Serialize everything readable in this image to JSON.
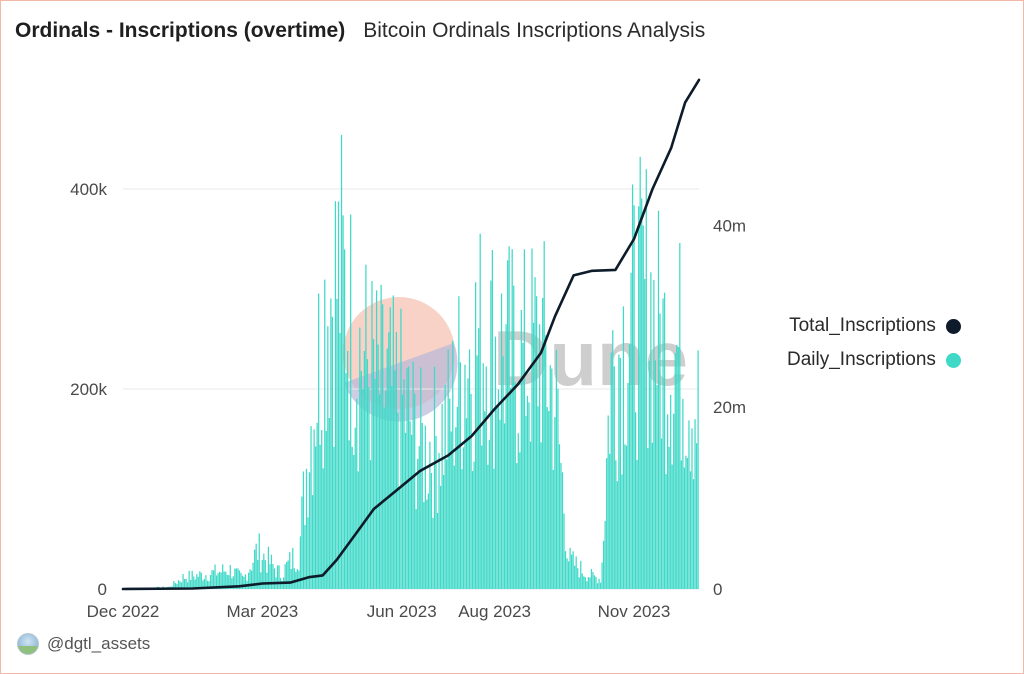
{
  "header": {
    "title": "Ordinals - Inscriptions (overtime)",
    "subtitle": "Bitcoin Ordinals Inscriptions Analysis"
  },
  "legend": {
    "items": [
      {
        "label": "Total_Inscriptions",
        "color": "#0d1b2a"
      },
      {
        "label": "Daily_Inscriptions",
        "color": "#40d9c8"
      }
    ]
  },
  "watermark": {
    "text": "Dune"
  },
  "footer": {
    "author": "@dgtl_assets",
    "avatar_icon": "user-avatar-icon"
  },
  "chart_data": {
    "type": "bar+line",
    "x_tick_labels": [
      "Dec 2022",
      "Mar 2023",
      "Jun 2023",
      "Aug 2023",
      "Nov 2023"
    ],
    "x_tick_months": [
      0,
      3,
      6,
      8,
      11
    ],
    "x_range_months": [
      0,
      12.4
    ],
    "left_axis": {
      "ticks": [
        0,
        200000,
        400000
      ],
      "tick_labels": [
        "0",
        "200k",
        "400k"
      ],
      "range": [
        0,
        500000
      ]
    },
    "right_axis": {
      "ticks": [
        0,
        20000000,
        40000000
      ],
      "tick_labels": [
        "0",
        "20m",
        "40m"
      ],
      "range": [
        0,
        55000000
      ]
    },
    "grid": "horizontal",
    "legend_position": "right",
    "series": [
      {
        "name": "Daily_Inscriptions",
        "kind": "bar",
        "axis": "left",
        "color": "#40d9c8",
        "points": [
          [
            0.0,
            0
          ],
          [
            1.0,
            2000
          ],
          [
            1.3,
            12000
          ],
          [
            1.8,
            15000
          ],
          [
            2.3,
            20000
          ],
          [
            2.6,
            10000
          ],
          [
            2.9,
            40000
          ],
          [
            3.4,
            15000
          ],
          [
            3.8,
            40000
          ],
          [
            4.0,
            150000
          ],
          [
            4.4,
            300000
          ],
          [
            4.7,
            320000
          ],
          [
            5.0,
            250000
          ],
          [
            5.5,
            210000
          ],
          [
            6.0,
            190000
          ],
          [
            6.5,
            140000
          ],
          [
            7.0,
            170000
          ],
          [
            7.4,
            240000
          ],
          [
            7.8,
            260000
          ],
          [
            8.2,
            240000
          ],
          [
            8.6,
            230000
          ],
          [
            9.0,
            250000
          ],
          [
            9.3,
            200000
          ],
          [
            9.6,
            30000
          ],
          [
            10.0,
            15000
          ],
          [
            10.3,
            10000
          ],
          [
            10.5,
            220000
          ],
          [
            10.8,
            260000
          ],
          [
            11.0,
            280000
          ],
          [
            11.3,
            300000
          ],
          [
            11.6,
            250000
          ],
          [
            12.0,
            240000
          ],
          [
            12.4,
            180000
          ]
        ]
      },
      {
        "name": "Total_Inscriptions",
        "kind": "line",
        "axis": "right",
        "color": "#0d1b2a",
        "points": [
          [
            0.0,
            0
          ],
          [
            1.5,
            50000
          ],
          [
            2.5,
            300000
          ],
          [
            3.0,
            600000
          ],
          [
            3.6,
            700000
          ],
          [
            4.0,
            1300000
          ],
          [
            4.3,
            1500000
          ],
          [
            4.6,
            3200000
          ],
          [
            5.0,
            6000000
          ],
          [
            5.4,
            8800000
          ],
          [
            5.9,
            10900000
          ],
          [
            6.4,
            13000000
          ],
          [
            7.0,
            14700000
          ],
          [
            7.5,
            16800000
          ],
          [
            8.0,
            19800000
          ],
          [
            8.5,
            22500000
          ],
          [
            9.0,
            26000000
          ],
          [
            9.3,
            30000000
          ],
          [
            9.7,
            34500000
          ],
          [
            10.1,
            35000000
          ],
          [
            10.6,
            35100000
          ],
          [
            11.0,
            38500000
          ],
          [
            11.4,
            44000000
          ],
          [
            11.8,
            48500000
          ],
          [
            12.1,
            53500000
          ],
          [
            12.4,
            56000000
          ]
        ]
      }
    ]
  }
}
